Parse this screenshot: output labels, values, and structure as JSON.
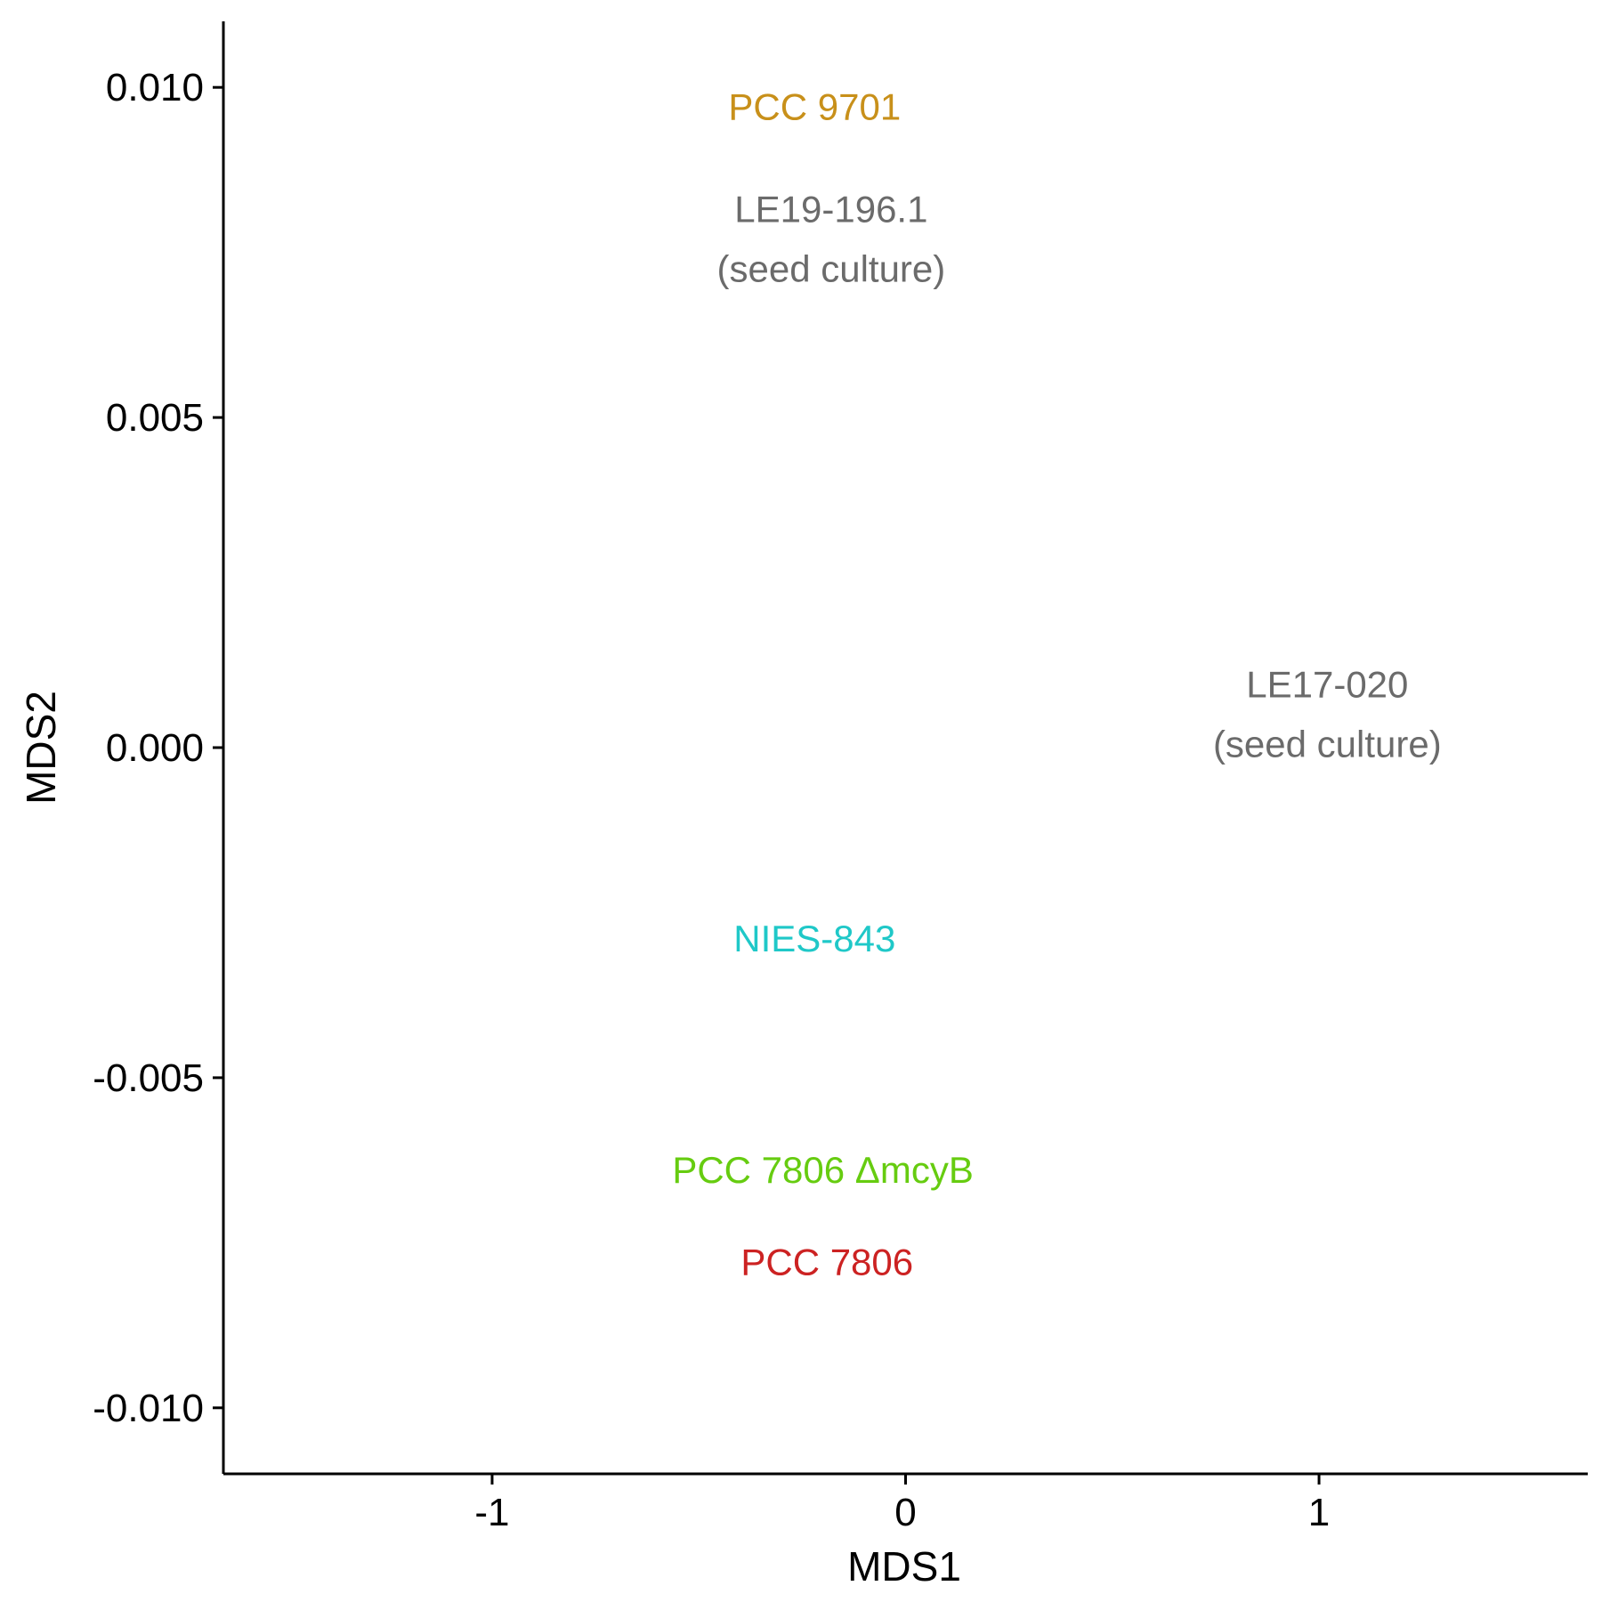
{
  "chart_data": {
    "type": "scatter",
    "title": "",
    "xlabel": "MDS1",
    "ylabel": "MDS2",
    "xlim": [
      -1.65,
      1.65
    ],
    "ylim": [
      -0.011,
      0.011
    ],
    "x_ticks": [
      {
        "value": -1,
        "label": "-1"
      },
      {
        "value": 0,
        "label": "0"
      },
      {
        "value": 1,
        "label": "1"
      }
    ],
    "y_ticks": [
      {
        "value": 0.01,
        "label": "0.010"
      },
      {
        "value": 0.005,
        "label": "0.005"
      },
      {
        "value": 0.0,
        "label": "0.000"
      },
      {
        "value": -0.005,
        "label": "-0.005"
      },
      {
        "value": -0.01,
        "label": "-0.010"
      }
    ],
    "grid": false,
    "legend": "none",
    "points": [
      {
        "label": [
          "PCC 9701"
        ],
        "x": -0.22,
        "y": 0.0097,
        "color": "#C8901A"
      },
      {
        "label": [
          "LE19-196.1",
          "(seed culture)"
        ],
        "x": -0.18,
        "y": 0.0077,
        "color": "#6B6B6B"
      },
      {
        "label": [
          "LE17-020",
          "(seed culture)"
        ],
        "x": 1.02,
        "y": 0.0005,
        "color": "#6B6B6B"
      },
      {
        "label": [
          "NIES-843"
        ],
        "x": -0.22,
        "y": -0.0029,
        "color": "#1FC8C8"
      },
      {
        "label": [
          "PCC 7806 ΔmcyB"
        ],
        "x": -0.2,
        "y": -0.0064,
        "color": "#66CC10"
      },
      {
        "label": [
          "PCC 7806"
        ],
        "x": -0.19,
        "y": -0.0078,
        "color": "#CC2222"
      }
    ]
  }
}
